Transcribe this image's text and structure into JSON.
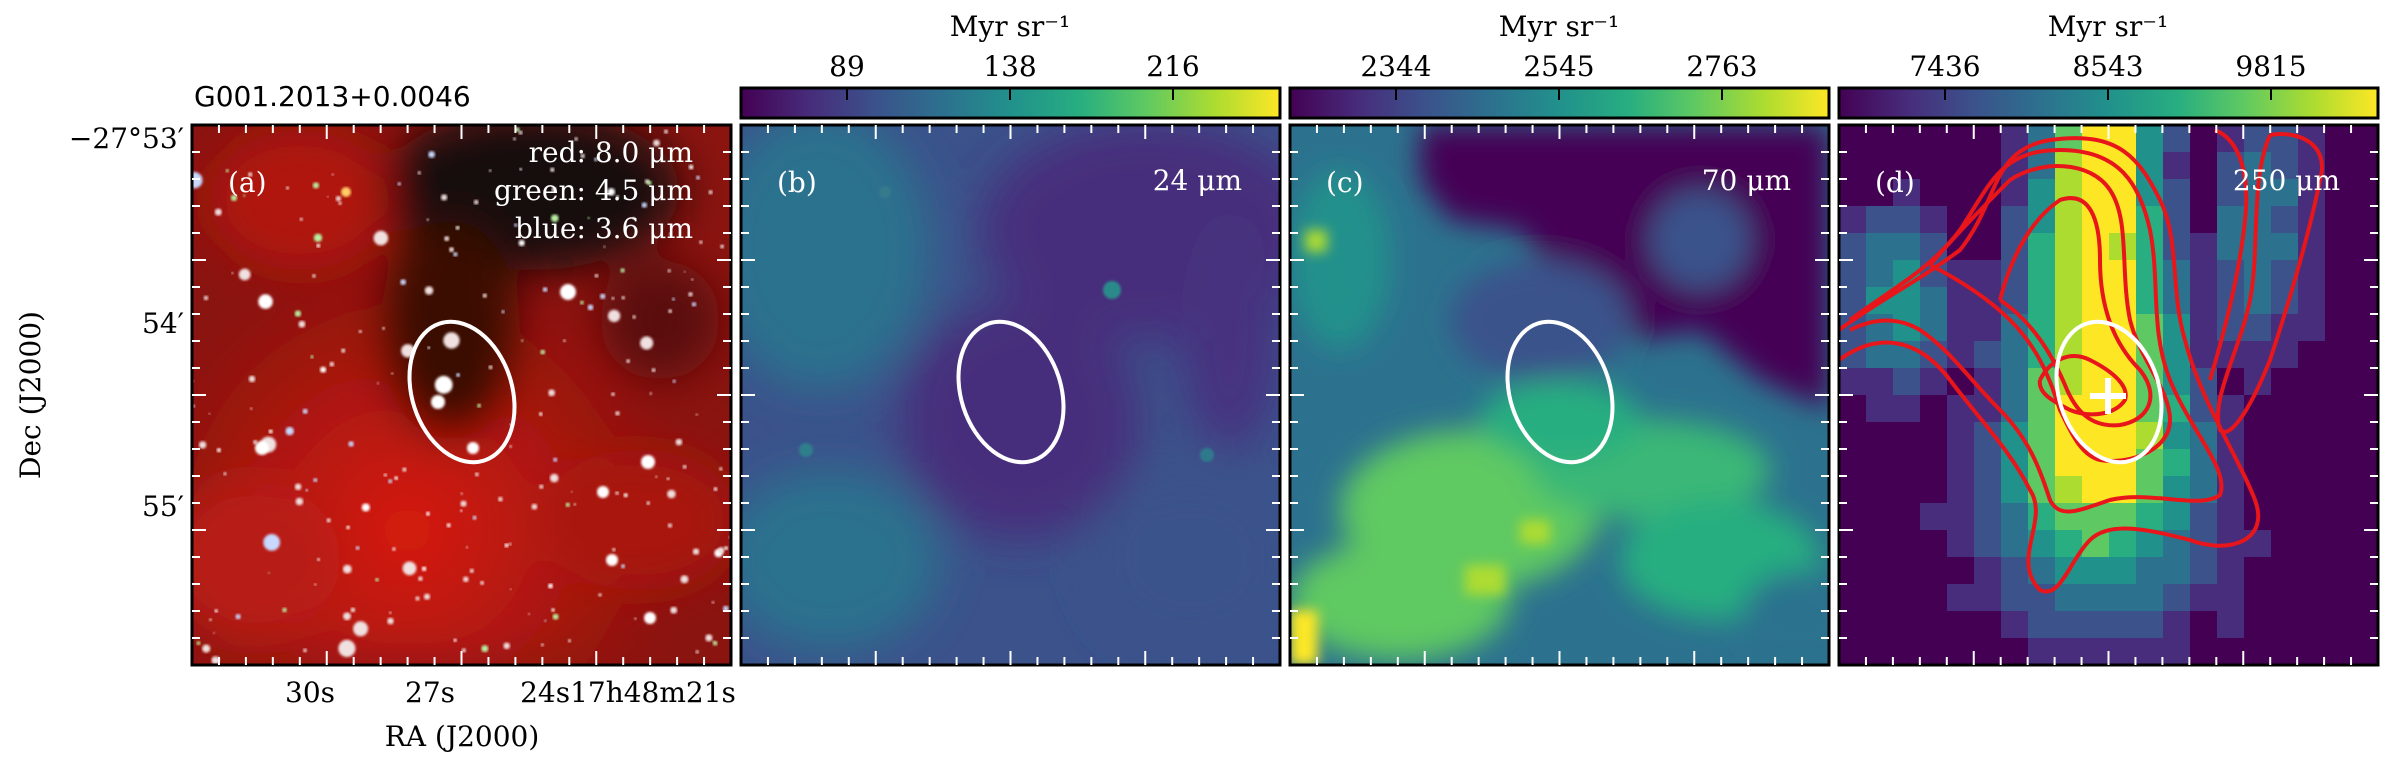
{
  "figure": {
    "source_title": "G001.2013+0.0046",
    "ylabel": "Dec (J2000)",
    "xlabel": "RA (J2000)",
    "dec_ticks": [
      "−27°53′",
      "54′",
      "55′"
    ],
    "ra_ticks": [
      "30s",
      "27s",
      "24s17h48m21s"
    ]
  },
  "panels": [
    {
      "tag": "(a)",
      "legend": [
        "red: 8.0 μm",
        "green: 4.5 μm",
        "blue: 3.6 μm"
      ]
    },
    {
      "tag": "(b)",
      "band": "24 μm",
      "unit": "Myr sr⁻¹",
      "colorbar_ticks": [
        "89",
        "138",
        "216"
      ]
    },
    {
      "tag": "(c)",
      "band": "70 μm",
      "unit": "Myr sr⁻¹",
      "colorbar_ticks": [
        "2344",
        "2545",
        "2763"
      ]
    },
    {
      "tag": "(d)",
      "band": "250 μm",
      "unit": "Myr sr⁻¹",
      "colorbar_ticks": [
        "7436",
        "8543",
        "9815"
      ]
    }
  ],
  "colors": {
    "ellipse": "#ffffff",
    "contour": "#e8161b",
    "marker": "#ffffff",
    "viridis_low": "#440154",
    "viridis_mid": "#21918c",
    "viridis_high": "#fde725"
  },
  "icons": {
    "center_marker": "plus-marker"
  }
}
